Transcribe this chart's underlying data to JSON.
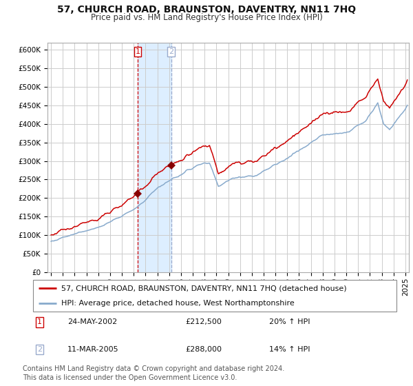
{
  "title": "57, CHURCH ROAD, BRAUNSTON, DAVENTRY, NN11 7HQ",
  "subtitle": "Price paid vs. HM Land Registry's House Price Index (HPI)",
  "red_label": "57, CHURCH ROAD, BRAUNSTON, DAVENTRY, NN11 7HQ (detached house)",
  "blue_label": "HPI: Average price, detached house, West Northamptonshire",
  "transaction1_label": "1",
  "transaction1_date": "24-MAY-2002",
  "transaction1_price": "£212,500",
  "transaction1_pct": "20% ↑ HPI",
  "transaction2_label": "2",
  "transaction2_date": "11-MAR-2005",
  "transaction2_price": "£288,000",
  "transaction2_pct": "14% ↑ HPI",
  "footer_line1": "Contains HM Land Registry data © Crown copyright and database right 2024.",
  "footer_line2": "This data is licensed under the Open Government Licence v3.0.",
  "ylim_min": 0,
  "ylim_max": 620000,
  "xlim_min": 1994.7,
  "xlim_max": 2025.3,
  "grid_color": "#cccccc",
  "red_line_color": "#cc0000",
  "blue_line_color": "#88aacc",
  "shade_color": "#ddeeff",
  "vline1_color": "#cc0000",
  "vline2_color": "#99aacc",
  "marker_color": "#880000",
  "sale1_year": 2002,
  "sale1_month": 5,
  "sale1_price": 212500,
  "sale2_year": 2005,
  "sale2_month": 3,
  "sale2_price": 288000,
  "label1_border_color": "#cc0000",
  "label2_border_color": "#99aacc",
  "title_fontsize": 10,
  "subtitle_fontsize": 8.5,
  "axis_tick_fontsize": 7.5,
  "legend_fontsize": 8,
  "table_fontsize": 8,
  "footer_fontsize": 7
}
